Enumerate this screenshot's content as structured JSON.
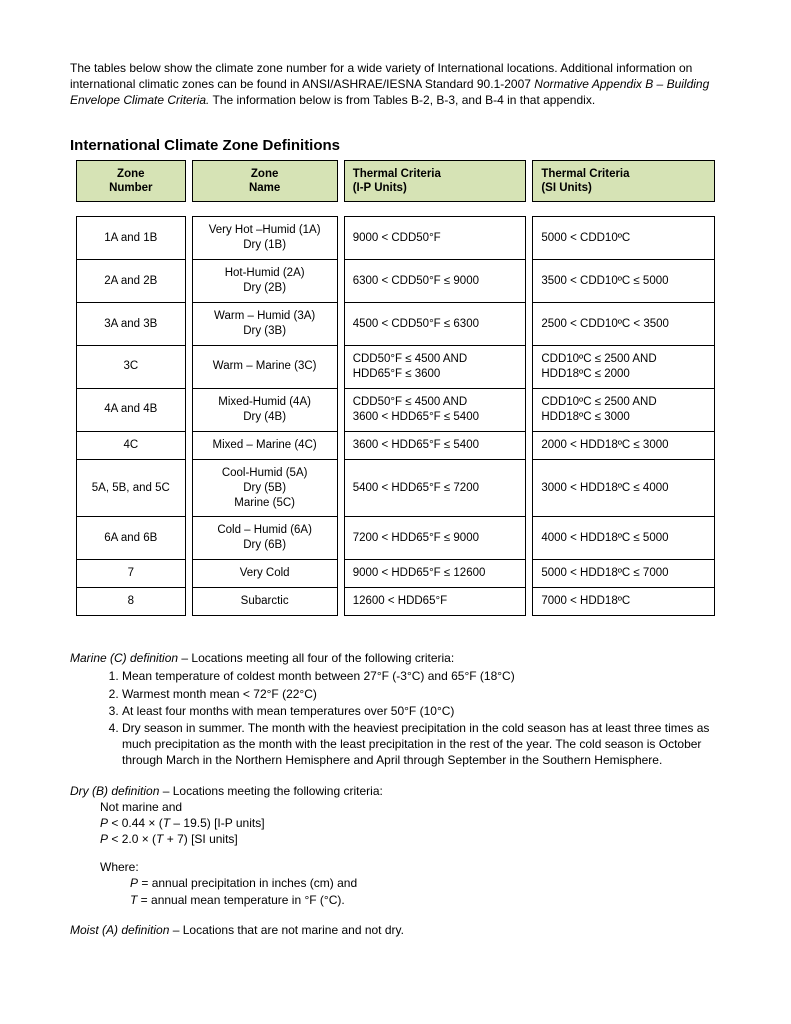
{
  "intro": {
    "line1": "The tables below show the climate zone number for a wide variety of International locations.  Additional information on international climatic zones can be found in ANSI/ASHRAE/IESNA Standard 90.1-2007 ",
    "italic": "Normative Appendix B – Building Envelope Climate Criteria.",
    "line2": "  The information below is from Tables B-2, B-3, and B-4 in that appendix."
  },
  "section_title": "International Climate Zone Definitions",
  "table": {
    "headers": {
      "c1a": "Zone",
      "c1b": "Number",
      "c2a": "Zone",
      "c2b": "Name",
      "c3a": "Thermal Criteria",
      "c3b": "(I-P Units)",
      "c4a": "Thermal Criteria",
      "c4b": "(SI Units)"
    },
    "rows": [
      {
        "num": "1A and 1B",
        "name": "Very Hot –Humid (1A)\nDry (1B)",
        "ip": "9000 < CDD50°F",
        "si": "5000 < CDD10ºC"
      },
      {
        "num": "2A and 2B",
        "name": "Hot-Humid (2A)\nDry (2B)",
        "ip": "6300 < CDD50°F ≤ 9000",
        "si": "3500 < CDD10ºC ≤ 5000"
      },
      {
        "num": "3A and 3B",
        "name": "Warm – Humid (3A)\nDry (3B)",
        "ip": "4500 < CDD50°F ≤ 6300",
        "si": "2500 < CDD10ºC < 3500"
      },
      {
        "num": "3C",
        "name": "Warm – Marine (3C)",
        "ip": "CDD50°F ≤ 4500 AND\nHDD65°F ≤ 3600",
        "si": "CDD10ºC ≤ 2500 AND\nHDD18ºC ≤ 2000"
      },
      {
        "num": "4A and 4B",
        "name": "Mixed-Humid (4A)\nDry (4B)",
        "ip": "CDD50°F ≤ 4500 AND\n3600 < HDD65°F ≤ 5400",
        "si": "CDD10ºC ≤ 2500 AND\nHDD18ºC ≤ 3000"
      },
      {
        "num": "4C",
        "name": "Mixed – Marine (4C)",
        "ip": "3600 < HDD65°F ≤ 5400",
        "si": "2000 < HDD18ºC ≤ 3000"
      },
      {
        "num": "5A, 5B, and 5C",
        "name": "Cool-Humid (5A)\nDry (5B)\nMarine (5C)",
        "ip": "5400 < HDD65°F ≤ 7200",
        "si": "3000 < HDD18ºC ≤ 4000"
      },
      {
        "num": "6A and 6B",
        "name": "Cold – Humid (6A)\nDry (6B)",
        "ip": "7200 < HDD65°F ≤ 9000",
        "si": "4000 < HDD18ºC ≤ 5000"
      },
      {
        "num": "7",
        "name": "Very Cold",
        "ip": "9000 < HDD65°F ≤ 12600",
        "si": "5000 < HDD18ºC ≤ 7000"
      },
      {
        "num": "8",
        "name": "Subarctic",
        "ip": "12600 < HDD65°F",
        "si": "7000 < HDD18ºC"
      }
    ]
  },
  "marine": {
    "lead": "Marine (C) definition",
    "rest": " – Locations meeting all four of the following criteria:",
    "items": [
      "Mean temperature of coldest month between 27°F (-3°C) and 65°F (18°C)",
      "Warmest month mean < 72°F (22°C)",
      "At least four months with mean temperatures over 50°F (10°C)",
      "Dry season in summer. The month with the heaviest precipitation in the cold season has at least three times as much precipitation as the month with the least precipitation in the rest of the year. The cold season is October through March in the Northern Hemisphere and April through September in the Southern Hemisphere."
    ]
  },
  "dry": {
    "lead": "Dry (B) definition",
    "rest": " – Locations meeting the following criteria:",
    "notmarine": "Not marine and",
    "eq1_pre": "P",
    "eq1_mid": " < 0.44 × (",
    "eq1_t": "T",
    "eq1_post": " – 19.5)   [I-P units]",
    "eq2_pre": "P",
    "eq2_mid": " < 2.0 × (",
    "eq2_t": "T",
    "eq2_post": " + 7)    [SI units]",
    "where": "Where:",
    "p_pre": "P",
    "p_rest": " = annual precipitation in inches (cm) and",
    "t_pre": "T",
    "t_rest": " = annual mean temperature in °F (°C)."
  },
  "moist": {
    "lead": "Moist (A) definition",
    "rest": " – Locations that are not marine and not dry."
  }
}
